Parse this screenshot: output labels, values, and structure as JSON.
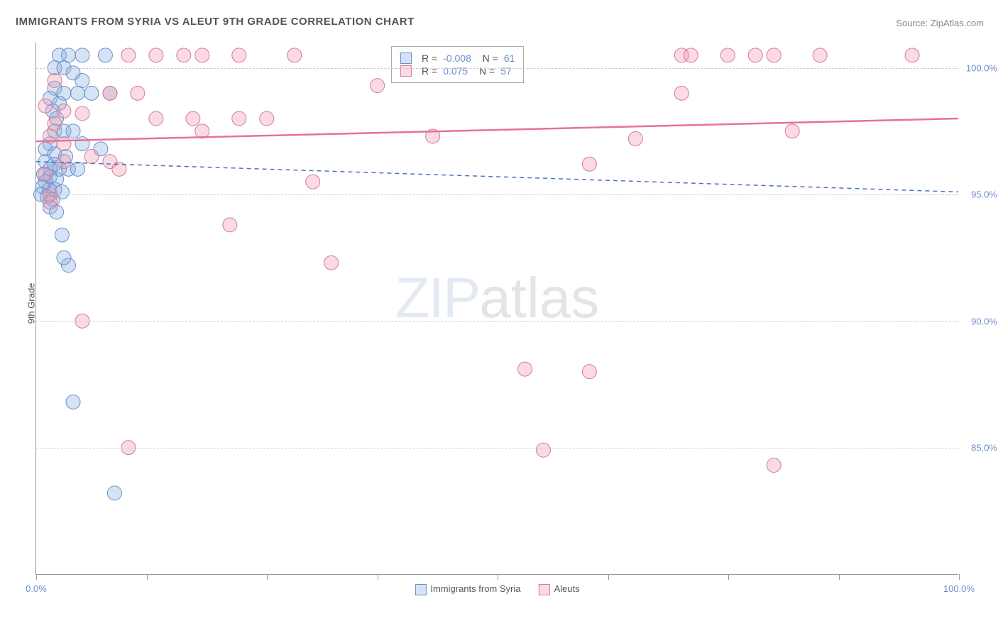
{
  "title": "IMMIGRANTS FROM SYRIA VS ALEUT 9TH GRADE CORRELATION CHART",
  "source": "Source: ZipAtlas.com",
  "ylabel": "9th Grade",
  "watermark_zip": "ZIP",
  "watermark_atlas": "atlas",
  "chart": {
    "type": "scatter",
    "background_color": "#ffffff",
    "grid_color": "#cccccc",
    "marker_radius": 10,
    "x_range": [
      0,
      100
    ],
    "y_range": [
      80,
      101
    ],
    "x_ticks": [
      0,
      12,
      25,
      37,
      50,
      62,
      75,
      87,
      100
    ],
    "x_tick_labels_shown": {
      "0": "0.0%",
      "100": "100.0%"
    },
    "y_ticks": [
      85,
      90,
      95,
      100
    ],
    "y_tick_labels": {
      "85": "85.0%",
      "90": "90.0%",
      "95": "95.0%",
      "100": "100.0%"
    },
    "series": [
      {
        "name": "Immigrants from Syria",
        "fill": "rgba(135,175,225,0.35)",
        "stroke": "#6a8fc9",
        "trend_color": "#4a74b8",
        "trend_dash": "6,5",
        "trend_width": 1.5,
        "R": "-0.008",
        "N": "61",
        "trend": {
          "y0": 96.3,
          "y1": 95.1
        },
        "points": [
          [
            2.5,
            100.5
          ],
          [
            3.5,
            100.5
          ],
          [
            5,
            100.5
          ],
          [
            7.5,
            100.5
          ],
          [
            2,
            100
          ],
          [
            3,
            100
          ],
          [
            4,
            99.8
          ],
          [
            5,
            99.5
          ],
          [
            2,
            99.2
          ],
          [
            3,
            99
          ],
          [
            4.5,
            99
          ],
          [
            6,
            99
          ],
          [
            8,
            99
          ],
          [
            1.5,
            98.8
          ],
          [
            2.5,
            98.6
          ],
          [
            1.8,
            98.3
          ],
          [
            2.2,
            98
          ],
          [
            2,
            97.5
          ],
          [
            3,
            97.5
          ],
          [
            4,
            97.5
          ],
          [
            1.5,
            97
          ],
          [
            1,
            96.8
          ],
          [
            2,
            96.6
          ],
          [
            3.2,
            96.5
          ],
          [
            5,
            97
          ],
          [
            7,
            96.8
          ],
          [
            1,
            96.3
          ],
          [
            2,
            96.2
          ],
          [
            1.5,
            96
          ],
          [
            2.5,
            96
          ],
          [
            3.5,
            96
          ],
          [
            4.5,
            96
          ],
          [
            0.8,
            95.8
          ],
          [
            1.5,
            95.7
          ],
          [
            2.2,
            95.6
          ],
          [
            1,
            95.5
          ],
          [
            0.7,
            95.3
          ],
          [
            1.4,
            95.2
          ],
          [
            2,
            95.2
          ],
          [
            2.8,
            95.1
          ],
          [
            0.5,
            95
          ],
          [
            1.2,
            94.9
          ],
          [
            1.8,
            94.8
          ],
          [
            1.5,
            94.5
          ],
          [
            2.2,
            94.3
          ],
          [
            2.8,
            93.4
          ],
          [
            3.5,
            92.2
          ],
          [
            3,
            92.5
          ],
          [
            4,
            86.8
          ],
          [
            8.5,
            83.2
          ]
        ]
      },
      {
        "name": "Aleuts",
        "fill": "rgba(240,150,175,0.35)",
        "stroke": "#d67b94",
        "trend_color": "#e57393",
        "trend_dash": "",
        "trend_width": 2.5,
        "R": "0.075",
        "N": "57",
        "trend": {
          "y0": 97.1,
          "y1": 98.0
        },
        "points": [
          [
            10,
            100.5
          ],
          [
            13,
            100.5
          ],
          [
            16,
            100.5
          ],
          [
            18,
            100.5
          ],
          [
            22,
            100.5
          ],
          [
            28,
            100.5
          ],
          [
            40,
            100.5
          ],
          [
            48,
            100.5
          ],
          [
            70,
            100.5
          ],
          [
            71,
            100.5
          ],
          [
            75,
            100.5
          ],
          [
            78,
            100.5
          ],
          [
            80,
            100.5
          ],
          [
            85,
            100.5
          ],
          [
            95,
            100.5
          ],
          [
            2,
            99.5
          ],
          [
            8,
            99
          ],
          [
            11,
            99
          ],
          [
            1,
            98.5
          ],
          [
            3,
            98.3
          ],
          [
            5,
            98.2
          ],
          [
            2,
            97.8
          ],
          [
            13,
            98
          ],
          [
            17,
            98
          ],
          [
            22,
            98
          ],
          [
            25,
            98
          ],
          [
            1.5,
            97.3
          ],
          [
            3,
            97
          ],
          [
            18,
            97.5
          ],
          [
            37,
            99.3
          ],
          [
            43,
            97.3
          ],
          [
            60,
            96.2
          ],
          [
            65,
            97.2
          ],
          [
            70,
            99
          ],
          [
            82,
            97.5
          ],
          [
            30,
            95.5
          ],
          [
            1,
            95.8
          ],
          [
            3,
            96.3
          ],
          [
            6,
            96.5
          ],
          [
            8,
            96.3
          ],
          [
            9,
            96
          ],
          [
            1.5,
            95
          ],
          [
            21,
            93.8
          ],
          [
            32,
            92.3
          ],
          [
            1.5,
            94.7
          ],
          [
            5,
            90
          ],
          [
            53,
            88.1
          ],
          [
            60,
            88
          ],
          [
            10,
            85
          ],
          [
            55,
            84.9
          ],
          [
            80,
            84.3
          ]
        ]
      }
    ]
  }
}
